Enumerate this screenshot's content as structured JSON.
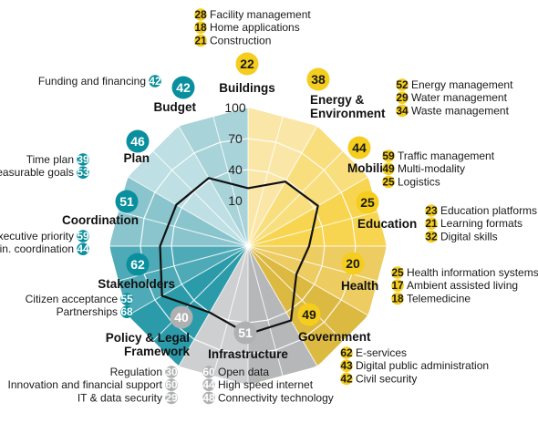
{
  "chart_data": {
    "type": "radar",
    "ticks": [
      "10",
      "40",
      "70",
      "100"
    ],
    "colors": {
      "yellow_badge": "#F5CD1E",
      "teal_badge": "#0A8F9E",
      "grey_badge": "#AFB0B1",
      "outline": "#111111"
    },
    "categories": [
      {
        "name": "Buildings",
        "lines": [
          "Buildings"
        ],
        "value": 22,
        "badge": "yellow",
        "color_light": "#F6ECC8",
        "color_dark": "#EFDDA0",
        "items": [
          {
            "value": 28,
            "label": "Facility management"
          },
          {
            "value": 18,
            "label": "Home applications"
          },
          {
            "value": 21,
            "label": "Construction"
          }
        ]
      },
      {
        "name": "Energy & Environment",
        "lines": [
          "Energy &",
          "Environment"
        ],
        "value": 38,
        "badge": "yellow",
        "color_light": "#FAE7A8",
        "color_dark": "#F5D579",
        "items": [
          {
            "value": 52,
            "label": "Energy management"
          },
          {
            "value": 29,
            "label": "Water management"
          },
          {
            "value": 34,
            "label": "Waste management"
          }
        ]
      },
      {
        "name": "Mobility",
        "lines": [
          "Mobility"
        ],
        "value": 44,
        "badge": "yellow",
        "color_light": "#F9DE7E",
        "color_dark": "#F4CE4C",
        "items": [
          {
            "value": 59,
            "label": "Traffic management"
          },
          {
            "value": 49,
            "label": "Multi-modality"
          },
          {
            "value": 25,
            "label": "Logistics"
          }
        ]
      },
      {
        "name": "Education",
        "lines": [
          "Education"
        ],
        "value": 25,
        "badge": "yellow",
        "color_light": "#F8D550",
        "color_dark": "#F2C21E",
        "items": [
          {
            "value": 23,
            "label": "Education platforms"
          },
          {
            "value": 21,
            "label": "Learning formats"
          },
          {
            "value": 32,
            "label": "Digital skills"
          }
        ]
      },
      {
        "name": "Health",
        "lines": [
          "Health"
        ],
        "value": 20,
        "badge": "yellow",
        "color_light": "#EDCC62",
        "color_dark": "#E0B935",
        "items": [
          {
            "value": 25,
            "label": "Health information systems"
          },
          {
            "value": 17,
            "label": "Ambient assisted living"
          },
          {
            "value": 18,
            "label": "Telemedicine"
          }
        ]
      },
      {
        "name": "Government",
        "lines": [
          "Government"
        ],
        "value": 49,
        "badge": "yellow",
        "color_light": "#DCB941",
        "color_dark": "#C9A423",
        "items": [
          {
            "value": 62,
            "label": "E-services"
          },
          {
            "value": 43,
            "label": "Digital public administration"
          },
          {
            "value": 42,
            "label": "Civil security"
          }
        ]
      },
      {
        "name": "Infrastructure",
        "lines": [
          "Infrastructure"
        ],
        "value": 51,
        "badge": "grey",
        "color_light": "#B5B7B8",
        "color_dark": "#9A9D9E",
        "items": [
          {
            "value": 60,
            "label": "Open data"
          },
          {
            "value": 44,
            "label": "High speed internet"
          },
          {
            "value": 48,
            "label": "Connectivity technology"
          }
        ]
      },
      {
        "name": "Policy & Legal Framework",
        "lines": [
          "Policy & Legal",
          "Framework"
        ],
        "value": 40,
        "badge": "grey",
        "color_light": "#CDCFD0",
        "color_dark": "#B9BBBC",
        "items": [
          {
            "value": 30,
            "label": "Regulation"
          },
          {
            "value": 60,
            "label": "Innovation and financial support"
          },
          {
            "value": 29,
            "label": "IT & data security"
          }
        ]
      },
      {
        "name": "Stakeholders",
        "lines": [
          "Stakeholders"
        ],
        "value": 62,
        "badge": "teal",
        "color_light": "#2B9BAA",
        "color_dark": "#0F8696",
        "items": [
          {
            "value": 55,
            "label": "Citizen acceptance"
          },
          {
            "value": 68,
            "label": "Partnerships"
          }
        ]
      },
      {
        "name": "Coordination",
        "lines": [
          "Coordination"
        ],
        "value": 51,
        "badge": "teal",
        "color_light": "#4FAAB7",
        "color_dark": "#2E97A6",
        "items": [
          {
            "value": 59,
            "label": "Executive priority"
          },
          {
            "value": 44,
            "label": "Admin. coordination"
          }
        ]
      },
      {
        "name": "Plan",
        "lines": [
          "Plan"
        ],
        "value": 46,
        "badge": "teal",
        "color_light": "#8AC5CE",
        "color_dark": "#6DB6C1",
        "items": [
          {
            "value": 39,
            "label": "Time plan"
          },
          {
            "value": 53,
            "label": "Measurable goals"
          }
        ]
      },
      {
        "name": "Budget",
        "lines": [
          "Budget"
        ],
        "value": 42,
        "badge": "teal",
        "color_light": "#BEDFE3",
        "color_dark": "#A8D3D9",
        "items": [
          {
            "value": 42,
            "label": "Funding and financing"
          }
        ]
      }
    ]
  }
}
